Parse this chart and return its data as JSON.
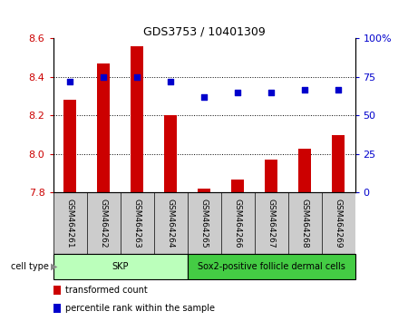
{
  "title": "GDS3753 / 10401309",
  "samples": [
    "GSM464261",
    "GSM464262",
    "GSM464263",
    "GSM464264",
    "GSM464265",
    "GSM464266",
    "GSM464267",
    "GSM464268",
    "GSM464269"
  ],
  "bar_values": [
    8.28,
    8.47,
    8.56,
    8.2,
    7.82,
    7.87,
    7.97,
    8.03,
    8.1
  ],
  "percentile_values": [
    72,
    75,
    75,
    72,
    62,
    65,
    65,
    67,
    67
  ],
  "bar_color": "#cc0000",
  "percentile_color": "#0000cc",
  "ylim_left": [
    7.8,
    8.6
  ],
  "ylim_right": [
    0,
    100
  ],
  "yticks_left": [
    7.8,
    8.0,
    8.2,
    8.4,
    8.6
  ],
  "yticks_right": [
    0,
    25,
    50,
    75,
    100
  ],
  "cell_type_groups": [
    {
      "label": "SKP",
      "start": 0,
      "end": 4,
      "color": "#bbffbb"
    },
    {
      "label": "Sox2-positive follicle dermal cells",
      "start": 4,
      "end": 9,
      "color": "#44cc44"
    }
  ],
  "legend_items": [
    {
      "label": "transformed count",
      "color": "#cc0000"
    },
    {
      "label": "percentile rank within the sample",
      "color": "#0000cc"
    }
  ],
  "cell_type_label": "cell type",
  "label_bg_color": "#cccccc",
  "bar_width": 0.4,
  "grid_lines": [
    8.0,
    8.2,
    8.4
  ]
}
